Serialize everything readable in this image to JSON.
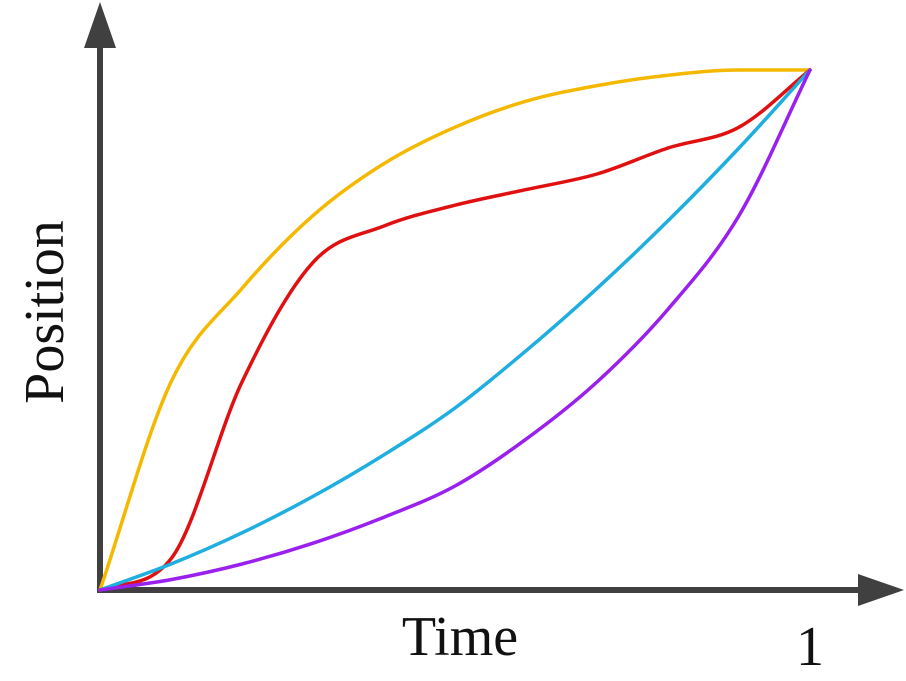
{
  "chart_data": {
    "type": "line",
    "title": "",
    "xlabel": "Time",
    "ylabel": "Position",
    "xlim": [
      0,
      1
    ],
    "ylim": [
      0,
      1
    ],
    "x_ticks": [
      {
        "value": 1,
        "label": "1"
      }
    ],
    "grid": false,
    "legend": "none",
    "series": [
      {
        "color": "#f5b800",
        "x": [
          0,
          0.1,
          0.2,
          0.3,
          0.4,
          0.5,
          0.6,
          0.7,
          0.8,
          0.9,
          1
        ],
        "y": [
          0,
          0.4,
          0.58,
          0.72,
          0.82,
          0.89,
          0.94,
          0.97,
          0.99,
          1.0,
          1
        ]
      },
      {
        "color": "#e01010",
        "x": [
          0,
          0.1,
          0.2,
          0.3,
          0.4,
          0.5,
          0.6,
          0.7,
          0.8,
          0.9,
          1
        ],
        "y": [
          0,
          0.06,
          0.4,
          0.63,
          0.7,
          0.74,
          0.77,
          0.8,
          0.85,
          0.89,
          1
        ]
      },
      {
        "color": "#1eaee0",
        "x": [
          0,
          0.1,
          0.2,
          0.3,
          0.4,
          0.5,
          0.6,
          0.7,
          0.8,
          0.9,
          1
        ],
        "y": [
          0,
          0.05,
          0.11,
          0.18,
          0.26,
          0.35,
          0.46,
          0.58,
          0.71,
          0.85,
          1
        ]
      },
      {
        "color": "#9a20ee",
        "x": [
          0,
          0.1,
          0.2,
          0.3,
          0.4,
          0.5,
          0.6,
          0.7,
          0.8,
          0.9,
          1
        ],
        "y": [
          0,
          0.02,
          0.05,
          0.09,
          0.14,
          0.2,
          0.29,
          0.4,
          0.54,
          0.72,
          1
        ]
      }
    ]
  }
}
